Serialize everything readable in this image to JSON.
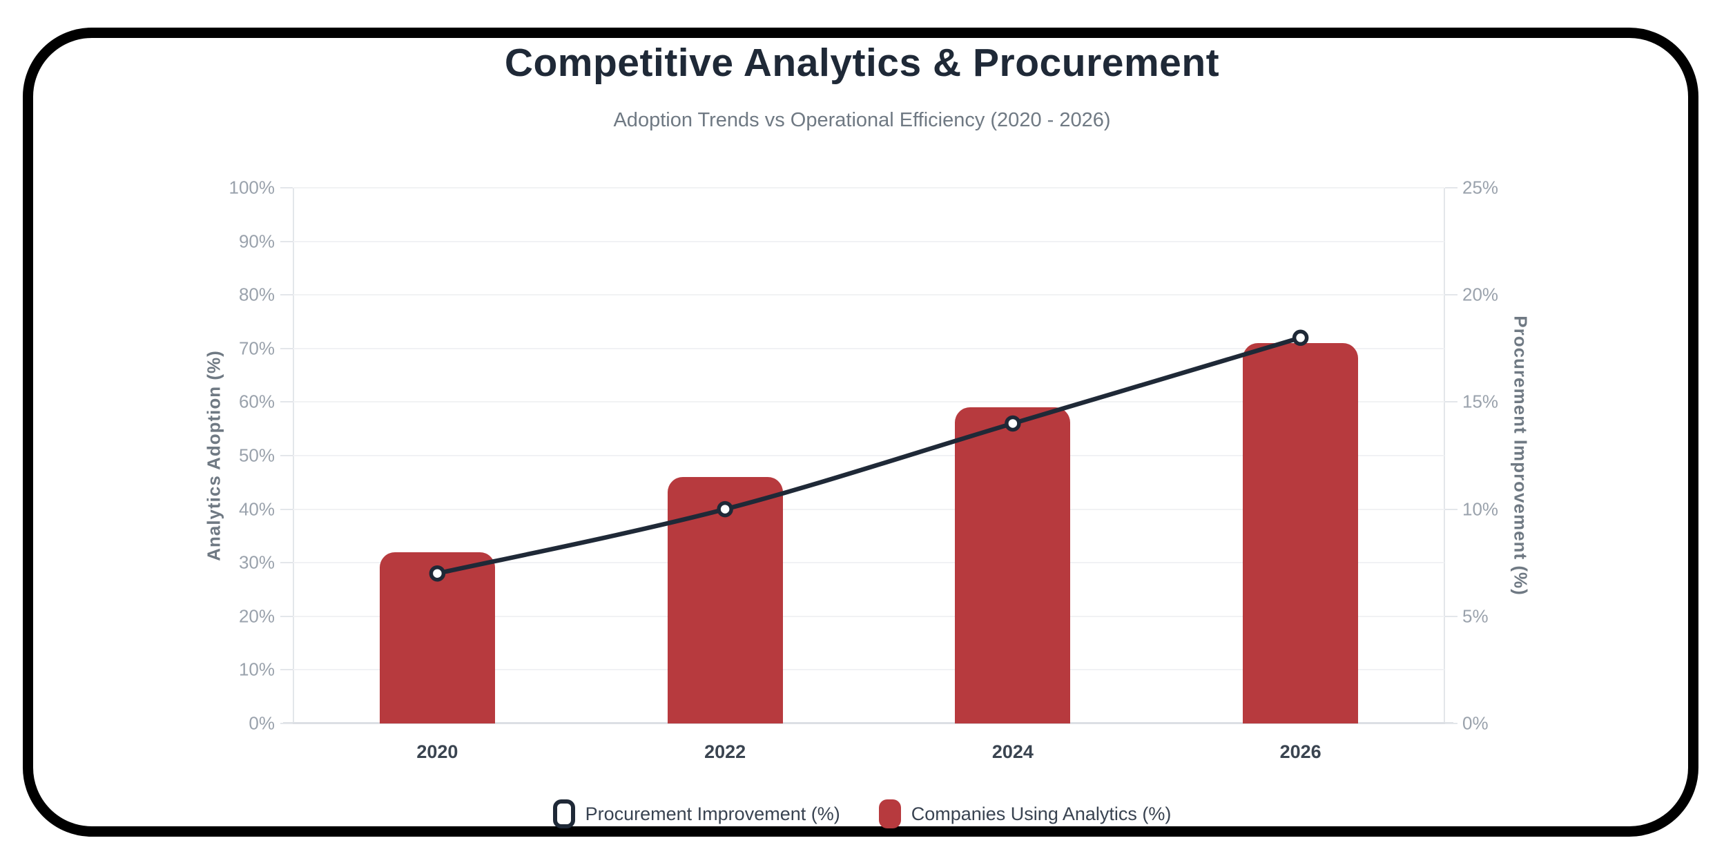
{
  "header": {
    "title": "Competitive Analytics & Procurement",
    "subtitle": "Adoption Trends vs Operational Efficiency (2020 - 2026)"
  },
  "colors": {
    "bar": "#b73a3e",
    "line": "#1f2937",
    "marker_fill": "#ffffff",
    "title_text": "#1f2937",
    "subtitle_text": "#6f7983",
    "tick_text": "#9aa2ac",
    "axis_title_text": "#6f7983",
    "x_label_text": "#3a4450",
    "legend_text": "#394351",
    "gridline": "#f1f2f4",
    "frame": "#000000"
  },
  "chart_data": {
    "type": "combo bar+line",
    "categories": [
      "2020",
      "2022",
      "2024",
      "2026"
    ],
    "series": [
      {
        "name": "Companies Using Analytics (%)",
        "type": "bar",
        "axis": "left",
        "color": "#b73a3e",
        "values": [
          32,
          46,
          59,
          71
        ]
      },
      {
        "name": "Procurement Improvement (%)",
        "type": "line",
        "axis": "right",
        "color": "#1f2937",
        "point_style": "white circle with dark ring",
        "values": [
          7,
          10,
          14,
          18
        ]
      }
    ],
    "left_axis": {
      "title": "Analytics Adoption (%)",
      "min": 0,
      "max": 100,
      "step": 10,
      "tick_labels": [
        "0%",
        "10%",
        "20%",
        "30%",
        "40%",
        "50%",
        "60%",
        "70%",
        "80%",
        "90%",
        "100%"
      ]
    },
    "right_axis": {
      "title": "Procurement Improvement (%)",
      "min": 0,
      "max": 25,
      "step": 5,
      "tick_labels": [
        "0%",
        "5%",
        "10%",
        "15%",
        "20%",
        "25%"
      ]
    },
    "grid": "horizontal only",
    "legend": {
      "position": "bottom",
      "items": [
        {
          "label": "Procurement Improvement (%)",
          "swatch": "outline"
        },
        {
          "label": "Companies Using Analytics (%)",
          "swatch": "solid"
        }
      ]
    }
  }
}
